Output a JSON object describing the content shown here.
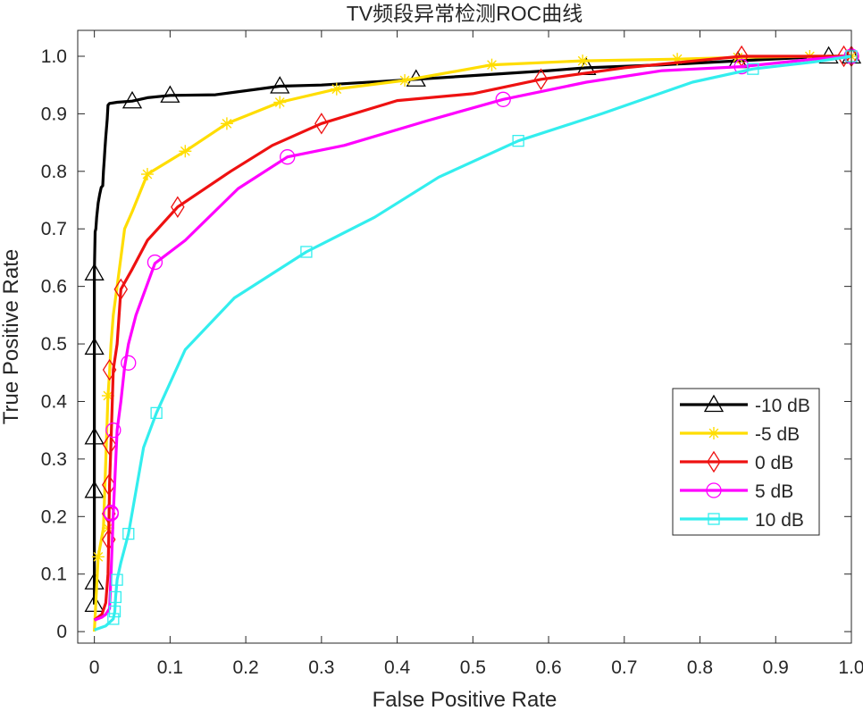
{
  "chart_data": {
    "type": "line",
    "title": "TV频段异常检测ROC曲线",
    "xlabel": "False Positive Rate",
    "ylabel": "True Positive Rate",
    "xlim": [
      -0.022,
      1.0
    ],
    "ylim": [
      -0.02,
      1.045
    ],
    "xticks": [
      "0",
      "0.1",
      "0.2",
      "0.3",
      "0.4",
      "0.5",
      "0.6",
      "0.7",
      "0.8",
      "0.9",
      "1.0"
    ],
    "yticks": [
      "0",
      "0.1",
      "0.2",
      "0.3",
      "0.4",
      "0.5",
      "0.6",
      "0.7",
      "0.8",
      "0.9",
      "1.0"
    ],
    "grid": false,
    "legend_position": "lower-right",
    "series": [
      {
        "name": "-10 dB",
        "color": "#000000",
        "marker": "triangle",
        "x": [
          0.0,
          0.0,
          0.0,
          0.0,
          0.0,
          0.0,
          0.0,
          0.001,
          0.002,
          0.003,
          0.005,
          0.007,
          0.009,
          0.011,
          0.012,
          0.013,
          0.014,
          0.015,
          0.016,
          0.017,
          0.018,
          0.02,
          0.03,
          0.05,
          0.07,
          0.1,
          0.16,
          0.245,
          0.3,
          0.425,
          0.6,
          0.65,
          0.75,
          0.85,
          0.97,
          1.0
        ],
        "y": [
          0.047,
          0.086,
          0.14,
          0.245,
          0.338,
          0.494,
          0.623,
          0.695,
          0.7,
          0.72,
          0.745,
          0.76,
          0.772,
          0.775,
          0.8,
          0.82,
          0.84,
          0.86,
          0.875,
          0.89,
          0.915,
          0.918,
          0.92,
          0.922,
          0.928,
          0.932,
          0.933,
          0.948,
          0.95,
          0.96,
          0.975,
          0.98,
          0.985,
          0.992,
          1.0,
          1.0
        ],
        "marker_x": [
          0.0,
          0.0,
          0.0,
          0.0,
          0.0,
          0.0,
          0.05,
          0.1,
          0.245,
          0.425,
          0.65,
          0.85,
          0.97,
          1.0
        ],
        "marker_y": [
          0.047,
          0.086,
          0.245,
          0.338,
          0.494,
          0.623,
          0.922,
          0.932,
          0.948,
          0.96,
          0.98,
          0.992,
          1.0,
          1.0
        ]
      },
      {
        "name": "-5 dB",
        "color": "#ffdd00",
        "marker": "star",
        "x": [
          0.0,
          0.005,
          0.012,
          0.018,
          0.02,
          0.022,
          0.025,
          0.03,
          0.035,
          0.04,
          0.05,
          0.07,
          0.12,
          0.175,
          0.245,
          0.32,
          0.41,
          0.525,
          0.645,
          0.77,
          0.85,
          0.945,
          1.0
        ],
        "y": [
          0.0,
          0.13,
          0.18,
          0.41,
          0.45,
          0.5,
          0.55,
          0.6,
          0.65,
          0.7,
          0.73,
          0.795,
          0.835,
          0.883,
          0.92,
          0.943,
          0.958,
          0.985,
          0.992,
          0.995,
          0.998,
          1.0,
          1.0
        ],
        "marker_x": [
          0.005,
          0.018,
          0.018,
          0.07,
          0.12,
          0.175,
          0.245,
          0.32,
          0.41,
          0.525,
          0.645,
          0.77,
          0.85,
          0.945,
          1.0
        ],
        "marker_y": [
          0.13,
          0.18,
          0.41,
          0.795,
          0.835,
          0.883,
          0.92,
          0.943,
          0.958,
          0.985,
          0.992,
          0.995,
          0.998,
          1.0,
          1.0
        ]
      },
      {
        "name": "0 dB",
        "color": "#ee1111",
        "marker": "diamond",
        "x": [
          0.0,
          0.01,
          0.015,
          0.018,
          0.019,
          0.02,
          0.022,
          0.025,
          0.03,
          0.035,
          0.05,
          0.07,
          0.11,
          0.18,
          0.235,
          0.3,
          0.4,
          0.5,
          0.59,
          0.7,
          0.855,
          0.99,
          1.0
        ],
        "y": [
          0.02,
          0.03,
          0.05,
          0.1,
          0.16,
          0.255,
          0.33,
          0.455,
          0.5,
          0.595,
          0.63,
          0.68,
          0.738,
          0.8,
          0.845,
          0.883,
          0.923,
          0.935,
          0.96,
          0.98,
          1.0,
          1.0,
          1.0
        ],
        "marker_x": [
          0.019,
          0.019,
          0.019,
          0.02,
          0.02,
          0.035,
          0.11,
          0.3,
          0.59,
          0.855,
          0.99,
          1.0
        ],
        "marker_y": [
          0.16,
          0.205,
          0.255,
          0.325,
          0.455,
          0.595,
          0.738,
          0.883,
          0.96,
          1.0,
          1.0,
          1.0
        ]
      },
      {
        "name": "5 dB",
        "color": "#ff00ff",
        "marker": "circle",
        "x": [
          0.0,
          0.01,
          0.015,
          0.02,
          0.022,
          0.025,
          0.03,
          0.035,
          0.04,
          0.045,
          0.055,
          0.08,
          0.12,
          0.19,
          0.255,
          0.33,
          0.44,
          0.54,
          0.65,
          0.75,
          0.855,
          0.95,
          1.0
        ],
        "y": [
          0.02,
          0.025,
          0.03,
          0.04,
          0.1,
          0.205,
          0.35,
          0.4,
          0.46,
          0.5,
          0.55,
          0.64,
          0.68,
          0.77,
          0.825,
          0.845,
          0.888,
          0.925,
          0.955,
          0.975,
          0.982,
          0.995,
          1.0
        ],
        "marker_x": [
          0.022,
          0.022,
          0.025,
          0.045,
          0.08,
          0.255,
          0.54,
          0.855,
          1.0
        ],
        "marker_y": [
          0.205,
          0.207,
          0.35,
          0.467,
          0.642,
          0.825,
          0.925,
          0.982,
          1.0
        ]
      },
      {
        "name": "10 dB",
        "color": "#33eeee",
        "marker": "square",
        "x": [
          0.0,
          0.015,
          0.025,
          0.027,
          0.028,
          0.03,
          0.035,
          0.045,
          0.065,
          0.082,
          0.12,
          0.185,
          0.28,
          0.37,
          0.455,
          0.56,
          0.67,
          0.79,
          0.87,
          0.95,
          1.0
        ],
        "y": [
          0.003,
          0.01,
          0.022,
          0.035,
          0.06,
          0.09,
          0.12,
          0.17,
          0.32,
          0.38,
          0.49,
          0.58,
          0.66,
          0.72,
          0.79,
          0.853,
          0.9,
          0.955,
          0.978,
          0.99,
          1.0
        ],
        "marker_x": [
          0.025,
          0.027,
          0.028,
          0.03,
          0.045,
          0.082,
          0.28,
          0.56,
          0.87,
          1.0
        ],
        "marker_y": [
          0.022,
          0.035,
          0.06,
          0.09,
          0.17,
          0.38,
          0.66,
          0.853,
          0.978,
          1.0
        ]
      }
    ]
  }
}
